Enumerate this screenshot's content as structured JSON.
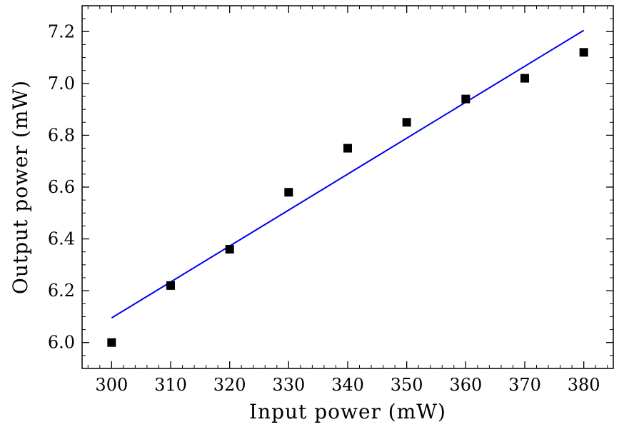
{
  "chart_data": {
    "type": "scatter",
    "xlabel": "Input power (mW)",
    "ylabel": "Output power (mW)",
    "xlim": [
      295,
      385
    ],
    "ylim": [
      5.9,
      7.3
    ],
    "xticks": [
      300,
      310,
      320,
      330,
      340,
      350,
      360,
      370,
      380
    ],
    "yticks": [
      6.0,
      6.2,
      6.4,
      6.6,
      6.8,
      7.0,
      7.2
    ],
    "x_tick_labels": [
      "300",
      "310",
      "320",
      "330",
      "340",
      "350",
      "360",
      "370",
      "380"
    ],
    "y_tick_labels": [
      "6.0",
      "6.2",
      "6.4",
      "6.6",
      "6.8",
      "7.0",
      "7.2"
    ],
    "grid": false,
    "series": [
      {
        "type": "scatter",
        "marker": "square",
        "color": "#000000",
        "x": [
          300,
          310,
          320,
          330,
          340,
          350,
          360,
          370,
          380
        ],
        "y": [
          6.0,
          6.22,
          6.36,
          6.58,
          6.75,
          6.85,
          6.94,
          7.02,
          7.12
        ]
      },
      {
        "type": "line",
        "color": "#0000ee",
        "x": [
          300,
          380
        ],
        "y": [
          6.095,
          7.205
        ]
      }
    ]
  }
}
